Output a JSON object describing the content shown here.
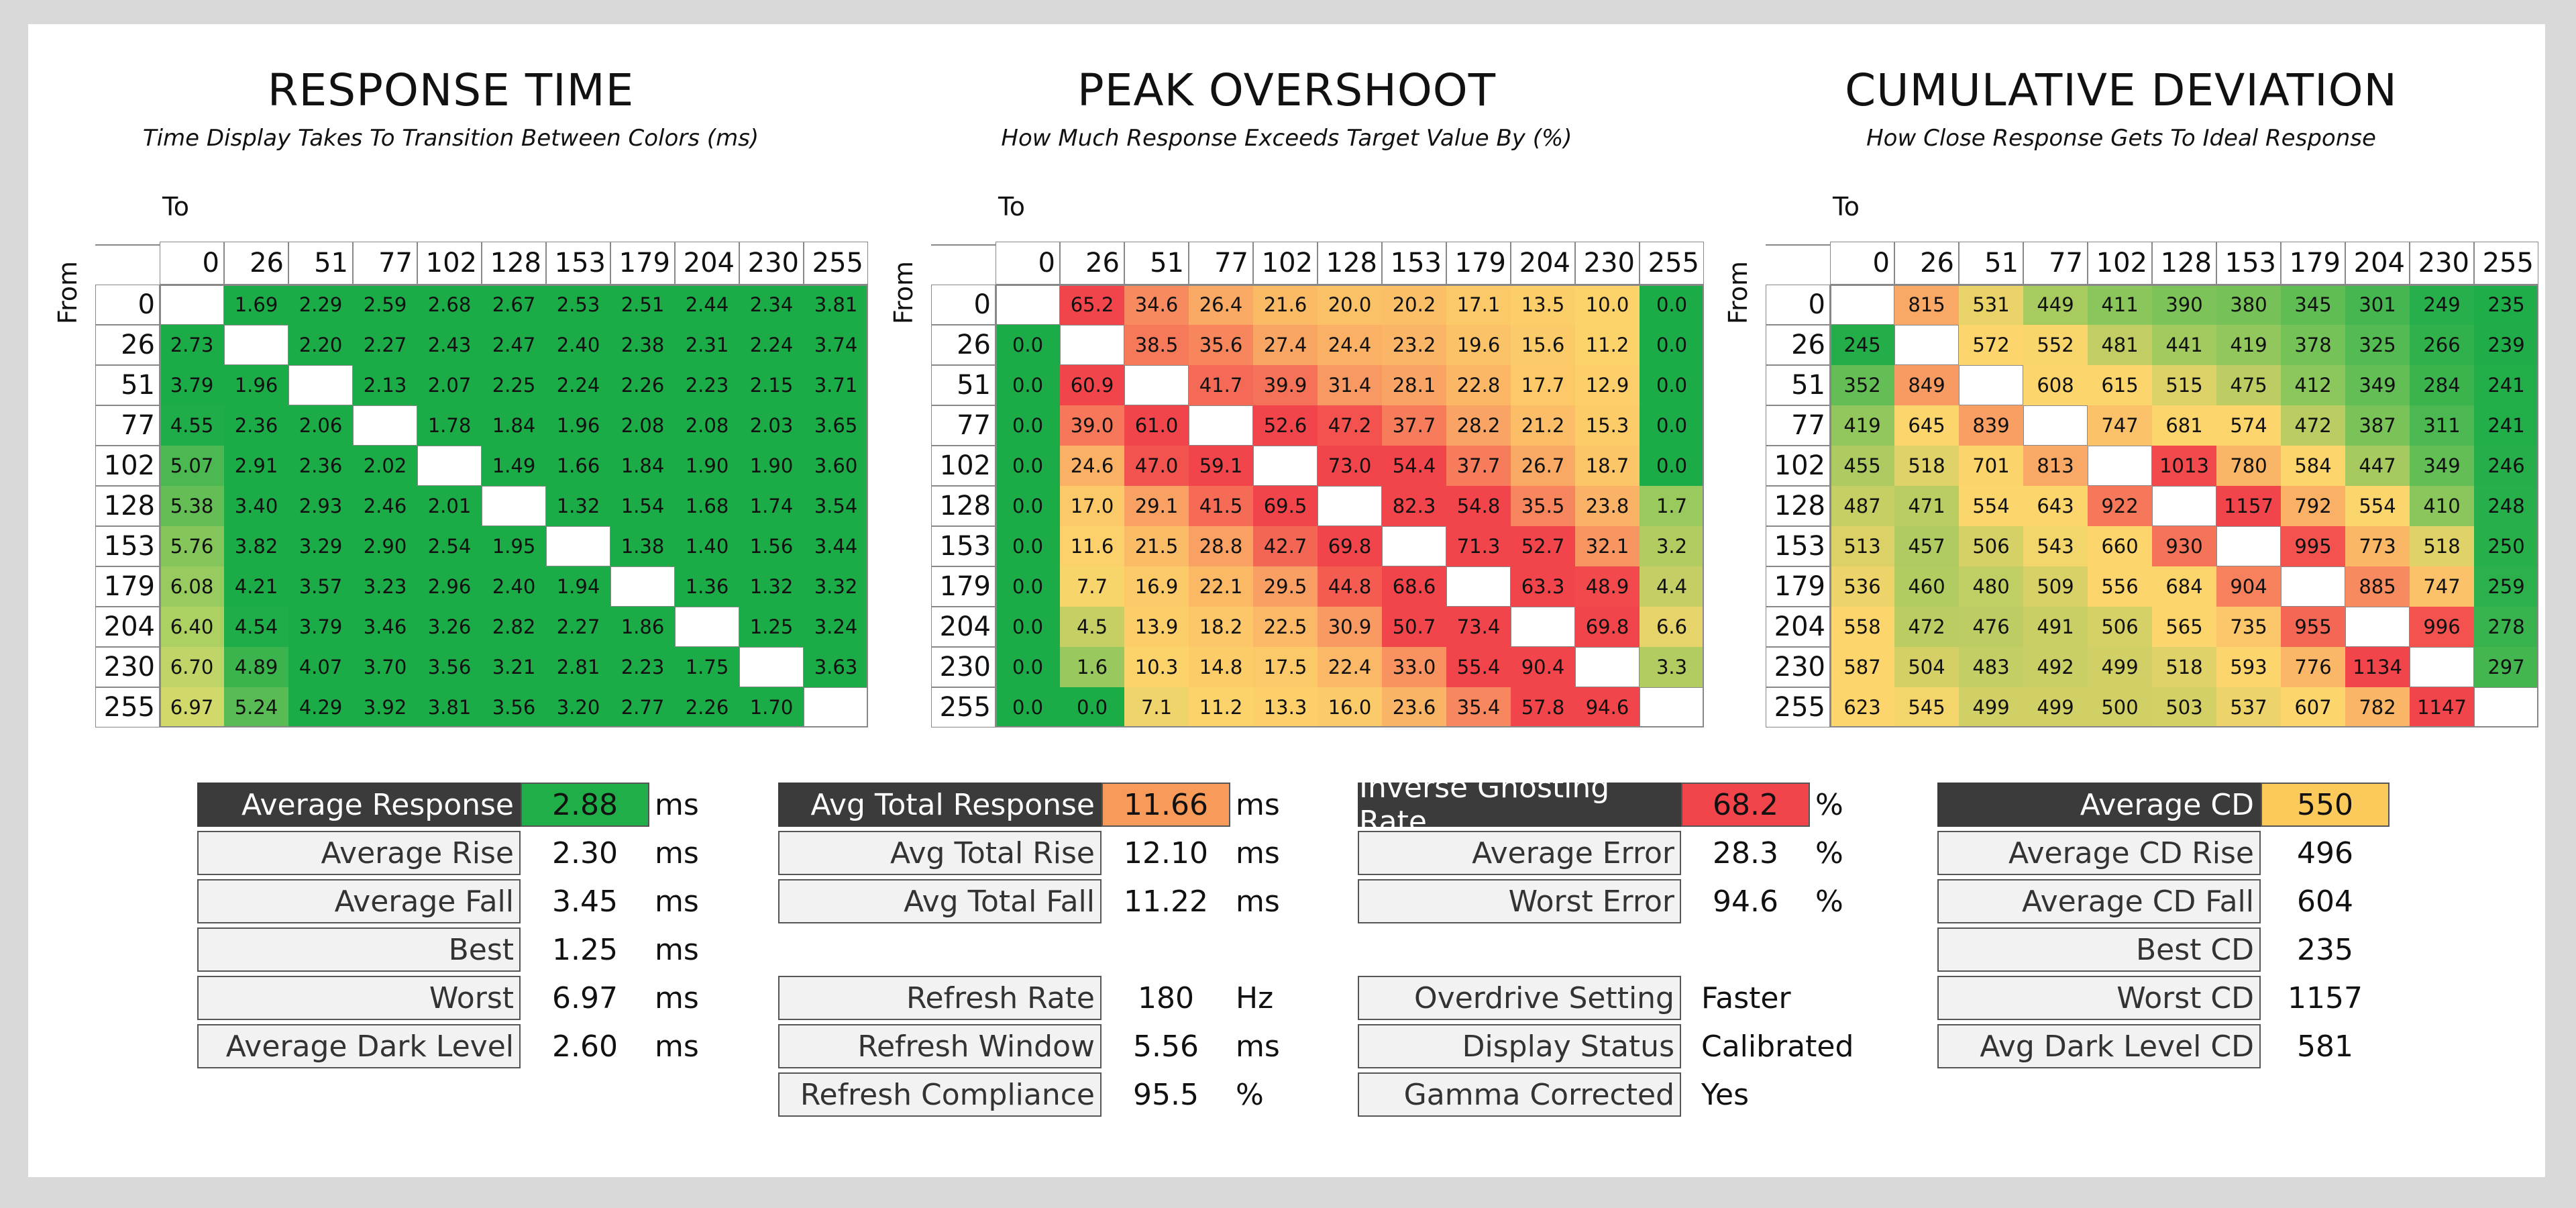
{
  "chart_data": [
    {
      "type": "heatmap",
      "title": "RESPONSE TIME",
      "subtitle": "Time Display Takes To Transition Between Colors (ms)",
      "xlabel": "To",
      "ylabel": "From",
      "levels": [
        "0",
        "26",
        "51",
        "77",
        "102",
        "128",
        "153",
        "179",
        "204",
        "230",
        "255"
      ],
      "colormap": "green-good",
      "values": [
        [
          "",
          "1.69",
          "2.29",
          "2.59",
          "2.68",
          "2.67",
          "2.53",
          "2.51",
          "2.44",
          "2.34",
          "3.81"
        ],
        [
          "2.73",
          "",
          "2.20",
          "2.27",
          "2.43",
          "2.47",
          "2.40",
          "2.38",
          "2.31",
          "2.24",
          "3.74"
        ],
        [
          "3.79",
          "1.96",
          "",
          "2.13",
          "2.07",
          "2.25",
          "2.24",
          "2.26",
          "2.23",
          "2.15",
          "3.71"
        ],
        [
          "4.55",
          "2.36",
          "2.06",
          "",
          "1.78",
          "1.84",
          "1.96",
          "2.08",
          "2.08",
          "2.03",
          "3.65"
        ],
        [
          "5.07",
          "2.91",
          "2.36",
          "2.02",
          "",
          "1.49",
          "1.66",
          "1.84",
          "1.90",
          "1.90",
          "3.60"
        ],
        [
          "5.38",
          "3.40",
          "2.93",
          "2.46",
          "2.01",
          "",
          "1.32",
          "1.54",
          "1.68",
          "1.74",
          "3.54"
        ],
        [
          "5.76",
          "3.82",
          "3.29",
          "2.90",
          "2.54",
          "1.95",
          "",
          "1.38",
          "1.40",
          "1.56",
          "3.44"
        ],
        [
          "6.08",
          "4.21",
          "3.57",
          "3.23",
          "2.96",
          "2.40",
          "1.94",
          "",
          "1.36",
          "1.32",
          "3.32"
        ],
        [
          "6.40",
          "4.54",
          "3.79",
          "3.46",
          "3.26",
          "2.82",
          "2.27",
          "1.86",
          "",
          "1.25",
          "3.24"
        ],
        [
          "6.70",
          "4.89",
          "4.07",
          "3.70",
          "3.56",
          "3.21",
          "2.81",
          "2.23",
          "1.75",
          "",
          "3.63"
        ],
        [
          "6.97",
          "5.24",
          "4.29",
          "3.92",
          "3.81",
          "3.56",
          "3.20",
          "2.77",
          "2.26",
          "1.70",
          ""
        ]
      ]
    },
    {
      "type": "heatmap",
      "title": "PEAK OVERSHOOT",
      "subtitle": "How Much Response Exceeds Target Value By (%)",
      "xlabel": "To",
      "ylabel": "From",
      "levels": [
        "0",
        "26",
        "51",
        "77",
        "102",
        "128",
        "153",
        "179",
        "204",
        "230",
        "255"
      ],
      "colormap": "overshoot",
      "values": [
        [
          "",
          "65.2",
          "34.6",
          "26.4",
          "21.6",
          "20.0",
          "20.2",
          "17.1",
          "13.5",
          "10.0",
          "0.0"
        ],
        [
          "0.0",
          "",
          "38.5",
          "35.6",
          "27.4",
          "24.4",
          "23.2",
          "19.6",
          "15.6",
          "11.2",
          "0.0"
        ],
        [
          "0.0",
          "60.9",
          "",
          "41.7",
          "39.9",
          "31.4",
          "28.1",
          "22.8",
          "17.7",
          "12.9",
          "0.0"
        ],
        [
          "0.0",
          "39.0",
          "61.0",
          "",
          "52.6",
          "47.2",
          "37.7",
          "28.2",
          "21.2",
          "15.3",
          "0.0"
        ],
        [
          "0.0",
          "24.6",
          "47.0",
          "59.1",
          "",
          "73.0",
          "54.4",
          "37.7",
          "26.7",
          "18.7",
          "0.0"
        ],
        [
          "0.0",
          "17.0",
          "29.1",
          "41.5",
          "69.5",
          "",
          "82.3",
          "54.8",
          "35.5",
          "23.8",
          "1.7"
        ],
        [
          "0.0",
          "11.6",
          "21.5",
          "28.8",
          "42.7",
          "69.8",
          "",
          "71.3",
          "52.7",
          "32.1",
          "3.2"
        ],
        [
          "0.0",
          "7.7",
          "16.9",
          "22.1",
          "29.5",
          "44.8",
          "68.6",
          "",
          "63.3",
          "48.9",
          "4.4"
        ],
        [
          "0.0",
          "4.5",
          "13.9",
          "18.2",
          "22.5",
          "30.9",
          "50.7",
          "73.4",
          "",
          "69.8",
          "6.6"
        ],
        [
          "0.0",
          "1.6",
          "10.3",
          "14.8",
          "17.5",
          "22.4",
          "33.0",
          "55.4",
          "90.4",
          "",
          "3.3"
        ],
        [
          "0.0",
          "0.0",
          "7.1",
          "11.2",
          "13.3",
          "16.0",
          "23.6",
          "35.4",
          "57.8",
          "94.6",
          ""
        ]
      ]
    },
    {
      "type": "heatmap",
      "title": "CUMULATIVE DEVIATION",
      "subtitle": "How Close Response Gets To Ideal Response",
      "xlabel": "To",
      "ylabel": "From",
      "levels": [
        "0",
        "26",
        "51",
        "77",
        "102",
        "128",
        "153",
        "179",
        "204",
        "230",
        "255"
      ],
      "colormap": "cd",
      "values": [
        [
          "",
          "815",
          "531",
          "449",
          "411",
          "390",
          "380",
          "345",
          "301",
          "249",
          "235"
        ],
        [
          "245",
          "",
          "572",
          "552",
          "481",
          "441",
          "419",
          "378",
          "325",
          "266",
          "239"
        ],
        [
          "352",
          "849",
          "",
          "608",
          "615",
          "515",
          "475",
          "412",
          "349",
          "284",
          "241"
        ],
        [
          "419",
          "645",
          "839",
          "",
          "747",
          "681",
          "574",
          "472",
          "387",
          "311",
          "241"
        ],
        [
          "455",
          "518",
          "701",
          "813",
          "",
          "1013",
          "780",
          "584",
          "447",
          "349",
          "246"
        ],
        [
          "487",
          "471",
          "554",
          "643",
          "922",
          "",
          "1157",
          "792",
          "554",
          "410",
          "248"
        ],
        [
          "513",
          "457",
          "506",
          "543",
          "660",
          "930",
          "",
          "995",
          "773",
          "518",
          "250"
        ],
        [
          "536",
          "460",
          "480",
          "509",
          "556",
          "684",
          "904",
          "",
          "885",
          "747",
          "259"
        ],
        [
          "558",
          "472",
          "476",
          "491",
          "506",
          "565",
          "735",
          "955",
          "",
          "996",
          "278"
        ],
        [
          "587",
          "504",
          "483",
          "492",
          "499",
          "518",
          "593",
          "776",
          "1134",
          "",
          "297"
        ],
        [
          "623",
          "545",
          "499",
          "499",
          "500",
          "503",
          "537",
          "607",
          "782",
          "1147",
          ""
        ]
      ]
    }
  ],
  "stats": [
    {
      "rows": [
        {
          "label": "Average Response",
          "value": "2.88",
          "unit": "ms",
          "header": true,
          "highlight": "#1fae48"
        },
        {
          "label": "Average Rise",
          "value": "2.30",
          "unit": "ms"
        },
        {
          "label": "Average Fall",
          "value": "3.45",
          "unit": "ms"
        },
        {
          "label": "Best",
          "value": "1.25",
          "unit": "ms"
        },
        {
          "label": "Worst",
          "value": "6.97",
          "unit": "ms"
        },
        {
          "label": "Average Dark Level",
          "value": "2.60",
          "unit": "ms"
        }
      ]
    },
    {
      "rows": [
        {
          "label": "Avg Total Response",
          "value": "11.66",
          "unit": "ms",
          "header": true,
          "highlight": "#f79a5a"
        },
        {
          "label": "Avg Total Rise",
          "value": "12.10",
          "unit": "ms"
        },
        {
          "label": "Avg Total Fall",
          "value": "11.22",
          "unit": "ms"
        },
        {
          "label": "",
          "value": "",
          "unit": "",
          "spacer": true
        },
        {
          "label": "Refresh Rate",
          "value": "180",
          "unit": "Hz"
        },
        {
          "label": "Refresh Window",
          "value": "5.56",
          "unit": "ms"
        },
        {
          "label": "Refresh Compliance",
          "value": "95.5",
          "unit": "%"
        }
      ]
    },
    {
      "rows": [
        {
          "label": "Inverse Ghosting Rate",
          "value": "68.2",
          "unit": "%",
          "header": true,
          "highlight": "#f2454b"
        },
        {
          "label": "Average Error",
          "value": "28.3",
          "unit": "%"
        },
        {
          "label": "Worst Error",
          "value": "94.6",
          "unit": "%"
        },
        {
          "label": "",
          "value": "",
          "unit": "",
          "spacer": true
        },
        {
          "label": "Overdrive Setting",
          "value": "Faster",
          "unit": ""
        },
        {
          "label": "Display Status",
          "value": "Calibrated",
          "unit": ""
        },
        {
          "label": "Gamma Corrected",
          "value": "Yes",
          "unit": ""
        }
      ]
    },
    {
      "rows": [
        {
          "label": "Average CD",
          "value": "550",
          "unit": "",
          "header": true,
          "highlight": "#fcca5a"
        },
        {
          "label": "Average CD Rise",
          "value": "496",
          "unit": ""
        },
        {
          "label": "Average CD Fall",
          "value": "604",
          "unit": ""
        },
        {
          "label": "Best CD",
          "value": "235",
          "unit": ""
        },
        {
          "label": "Worst CD",
          "value": "1157",
          "unit": ""
        },
        {
          "label": "Avg Dark Level CD",
          "value": "581",
          "unit": ""
        }
      ]
    }
  ]
}
